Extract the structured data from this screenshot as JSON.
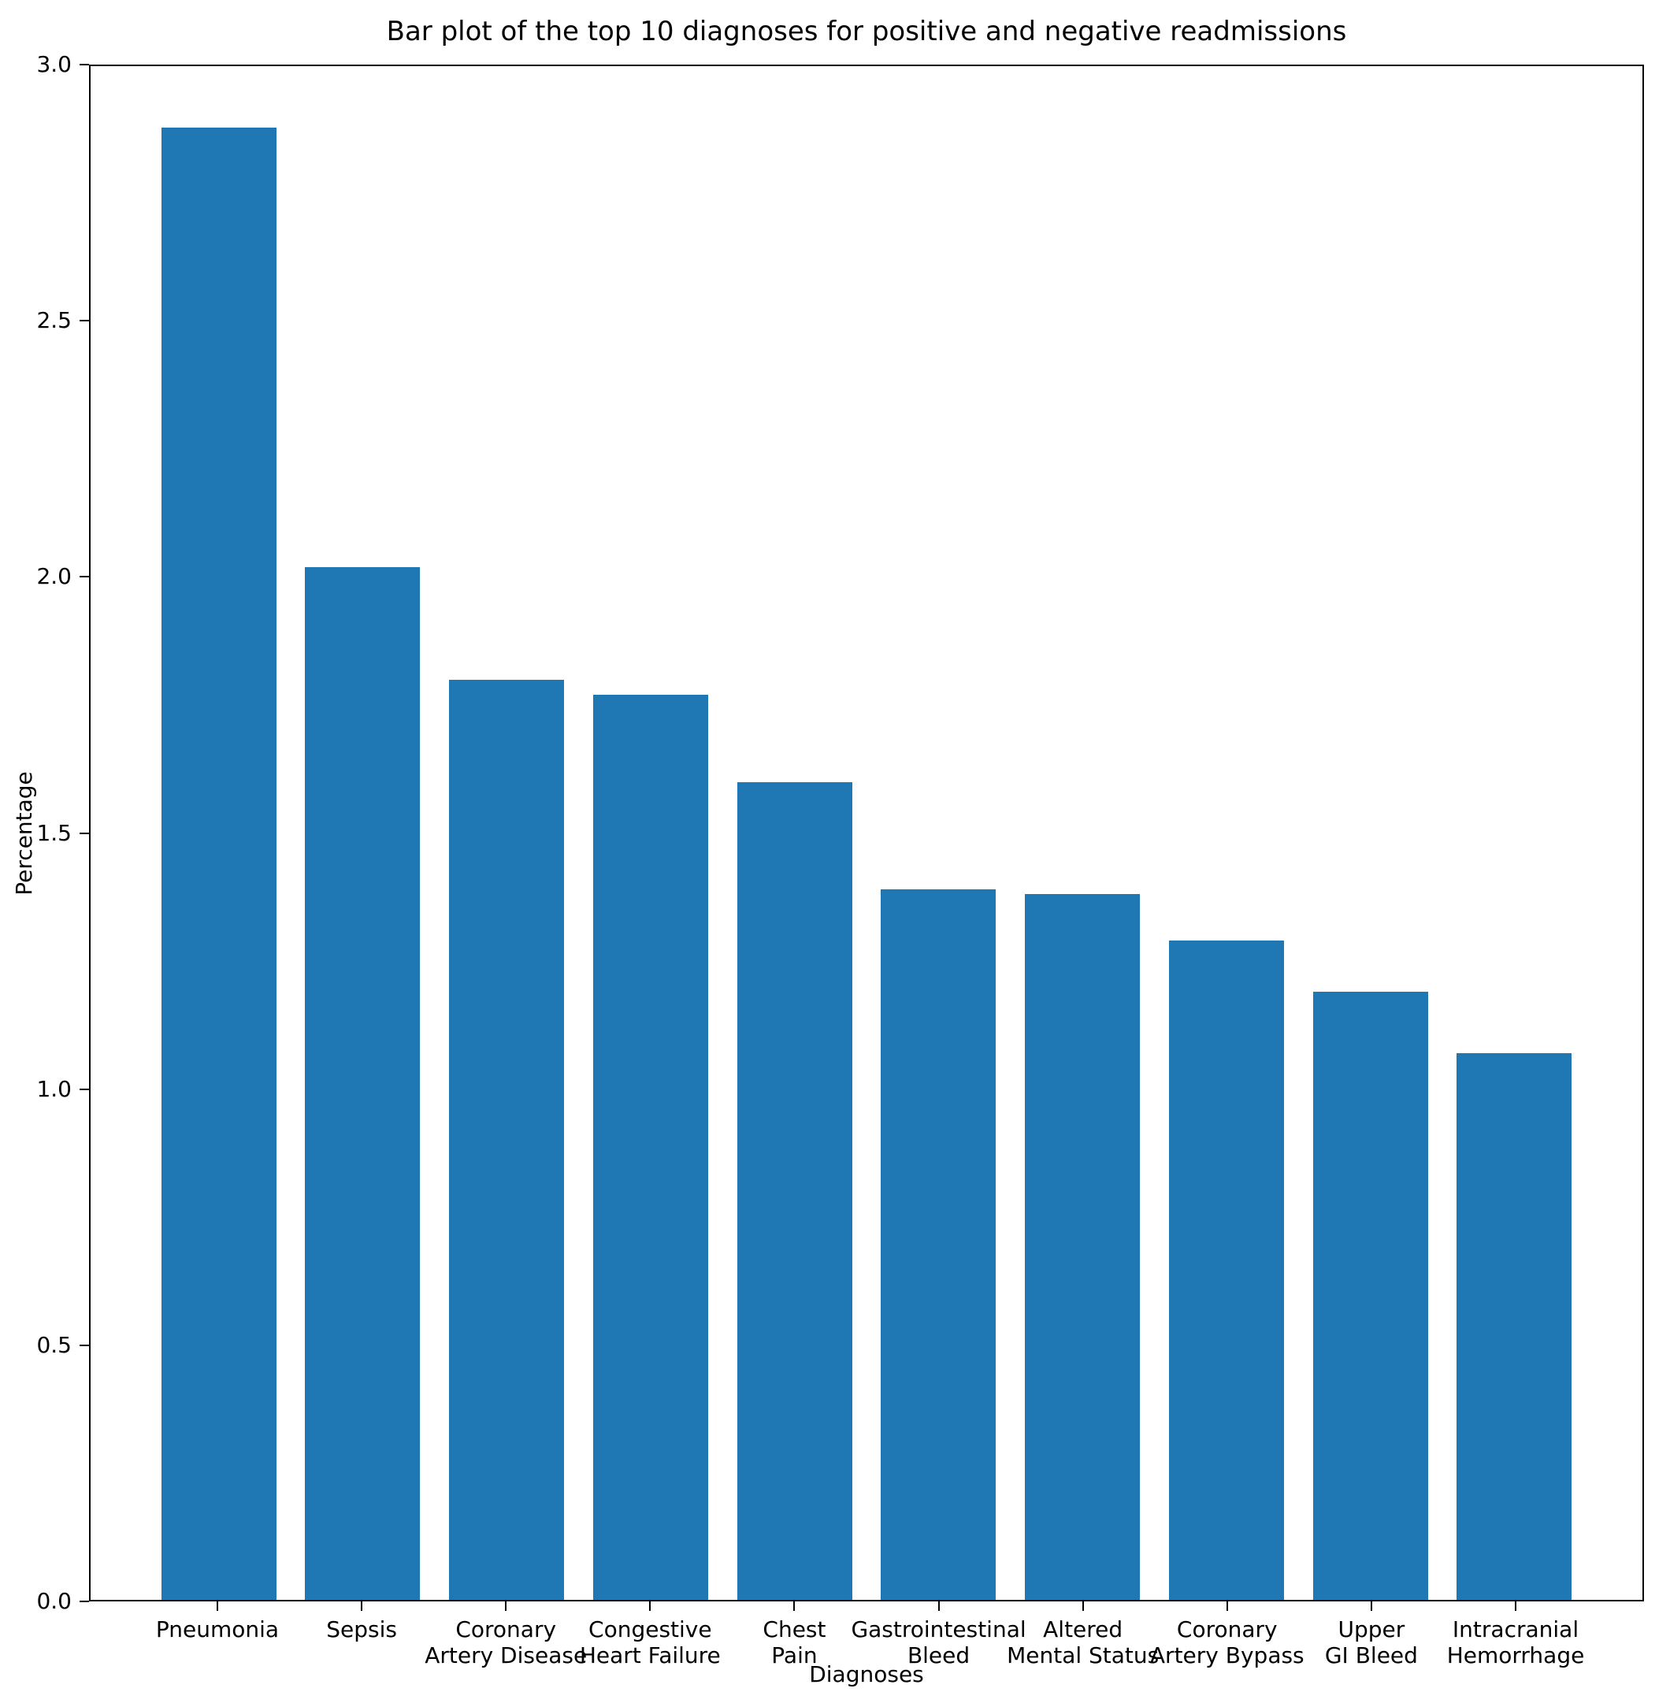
{
  "chart_data": {
    "type": "bar",
    "title": "Bar plot of the top 10 diagnoses for positive and negative readmissions",
    "xlabel": "Diagnoses",
    "ylabel": "Percentage",
    "categories": [
      "Pneumonia",
      "Sepsis",
      "Coronary\nArtery Disease",
      "Congestive\nHeart Failure",
      "Chest\nPain",
      "Gastrointestinal\nBleed",
      "Altered\nMental Status",
      "Coronary\nArtery Bypass",
      "Upper\nGI Bleed",
      "Intracranial\nHemorrhage"
    ],
    "values": [
      2.88,
      2.02,
      1.8,
      1.77,
      1.6,
      1.39,
      1.38,
      1.29,
      1.19,
      1.07
    ],
    "ylim": [
      0.0,
      3.0
    ],
    "ytick_labels": [
      "0.0",
      "0.5",
      "1.0",
      "1.5",
      "2.0",
      "2.5",
      "3.0"
    ],
    "ytick_values": [
      0.0,
      0.5,
      1.0,
      1.5,
      2.0,
      2.5,
      3.0
    ],
    "bar_color": "#1f77b4",
    "axis_color": "#000000",
    "grid": false,
    "legend_position": "none"
  }
}
